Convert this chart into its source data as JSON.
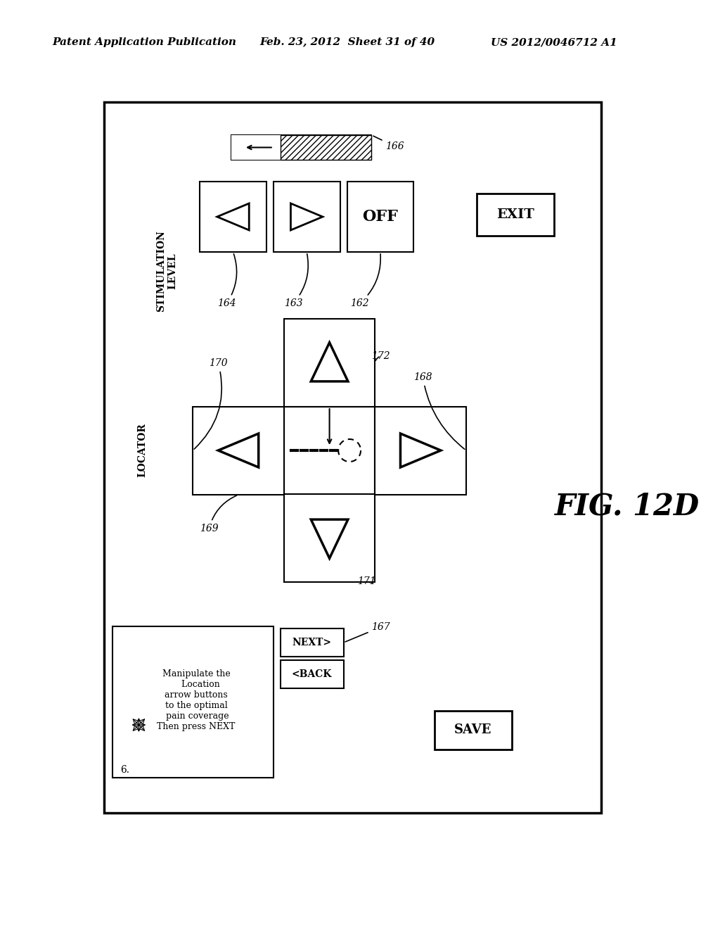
{
  "header_left": "Patent Application Publication",
  "header_mid": "Feb. 23, 2012  Sheet 31 of 40",
  "header_right": "US 2012/0046712 A1",
  "fig_label": "FIG. 12D",
  "bg_color": "#ffffff"
}
